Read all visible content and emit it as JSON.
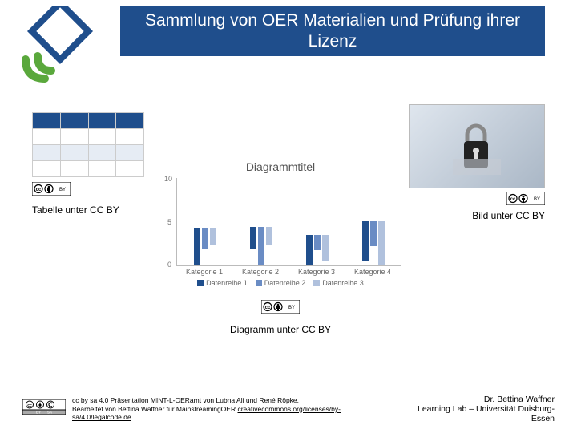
{
  "title": "Sammlung von OER Materialien und Prüfung ihrer Lizenz",
  "table": {
    "caption": "Tabelle unter CC BY",
    "columns": 4,
    "rows": 4,
    "header_color": "#1f4e8c",
    "alt_color": "#e6ecf4"
  },
  "image": {
    "caption": "Bild unter CC BY"
  },
  "chart": {
    "type": "bar",
    "title": "Diagrammtitel",
    "caption": "Diagramm unter CC BY",
    "categories": [
      "Kategorie 1",
      "Kategorie 2",
      "Kategorie 3",
      "Kategorie 4"
    ],
    "series": [
      {
        "name": "Datenreihe 1",
        "color": "#1f4e8c",
        "values": [
          4.3,
          2.5,
          3.5,
          4.5
        ]
      },
      {
        "name": "Datenreihe 2",
        "color": "#6a8cc4",
        "values": [
          2.4,
          4.4,
          1.8,
          2.8
        ]
      },
      {
        "name": "Datenreihe 3",
        "color": "#b0c1dd",
        "values": [
          2.0,
          2.0,
          3.0,
          5.0
        ]
      }
    ],
    "ylim": [
      0,
      10
    ],
    "yticks": [
      0,
      5,
      10
    ],
    "background_color": "#ffffff",
    "grid_color": "#dddddd"
  },
  "footer": {
    "line1": "cc by sa 4.0 Präsentation MINT-L-OERamt von Lubna Ali und René Röpke.",
    "line2_pre": "Bearbeitet von Bettina Waffner für MainstreamingOER  ",
    "line2_link": "creativecommons.org/licenses/by-sa/4.0/legalcode.de",
    "author": "Dr. Bettina Waffner",
    "org": "Learning Lab – Universität Duisburg-Essen"
  },
  "colors": {
    "brand": "#1f4e8c",
    "accent": "#5aa83c"
  }
}
